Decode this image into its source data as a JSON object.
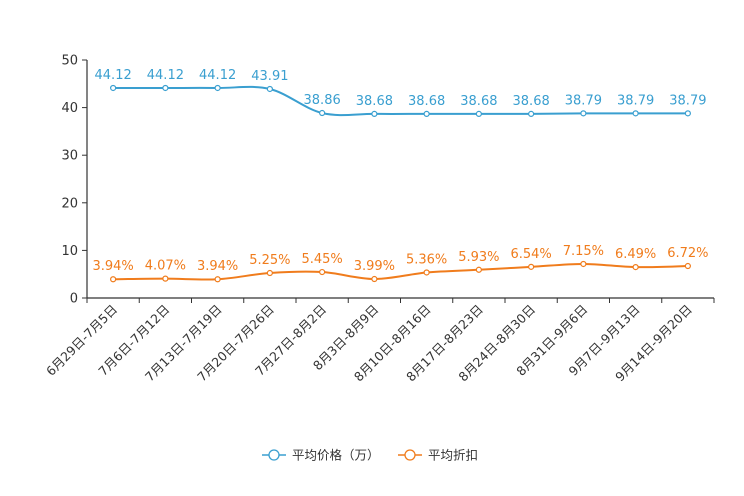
{
  "chart_data": {
    "type": "line",
    "categories": [
      "6月29日-7月5日",
      "7月6日-7月12日",
      "7月13日-7月19日",
      "7月20日-7月26日",
      "7月27日-8月2日",
      "8月3日-8月9日",
      "8月10日-8月16日",
      "8月17日-8月23日",
      "8月24日-8月30日",
      "8月31日-9月6日",
      "9月7日-9月13日",
      "9月14日-9月20日"
    ],
    "series": [
      {
        "name": "平均价格（万）",
        "color": "#3a9fd0",
        "values": [
          44.12,
          44.12,
          44.12,
          43.91,
          38.86,
          38.68,
          38.68,
          38.68,
          38.68,
          38.79,
          38.79,
          38.79
        ],
        "labels": [
          "44.12",
          "44.12",
          "44.12",
          "43.91",
          "38.86",
          "38.68",
          "38.68",
          "38.68",
          "38.68",
          "38.79",
          "38.79",
          "38.79"
        ]
      },
      {
        "name": "平均折扣",
        "color": "#f07c1c",
        "values": [
          3.94,
          4.07,
          3.94,
          5.25,
          5.45,
          3.99,
          5.36,
          5.93,
          6.54,
          7.15,
          6.49,
          6.72
        ],
        "labels": [
          "3.94%",
          "4.07%",
          "3.94%",
          "5.25%",
          "5.45%",
          "3.99%",
          "5.36%",
          "5.93%",
          "6.54%",
          "7.15%",
          "6.49%",
          "6.72%"
        ]
      }
    ],
    "yticks": [
      "0",
      "10",
      "20",
      "30",
      "40",
      "50"
    ],
    "ylim": [
      0,
      50
    ],
    "title": "",
    "xlabel": "",
    "ylabel": "",
    "grid": false,
    "legend_position": "bottom-center"
  }
}
